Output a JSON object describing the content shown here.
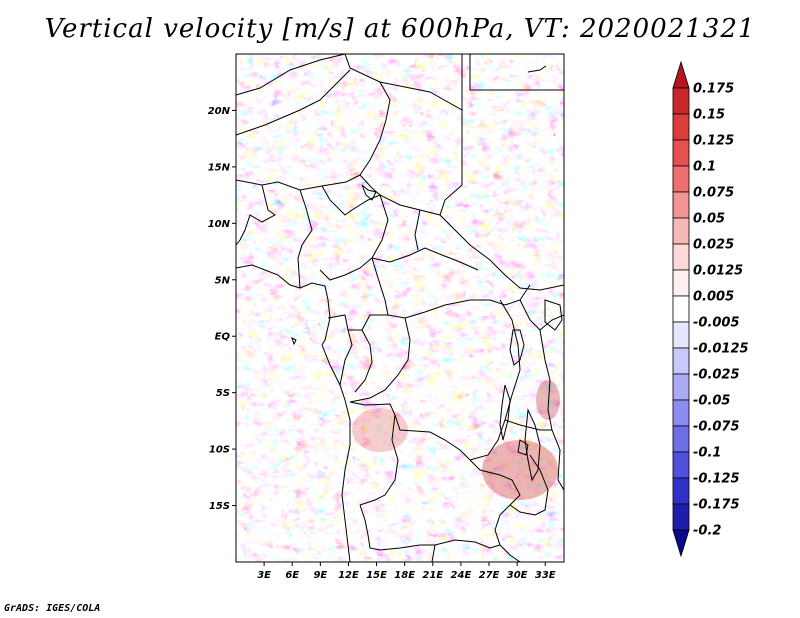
{
  "title": "Vertical velocity [m/s] at 600hPa, VT: 2020021321",
  "credit": "GrADS: IGES/COLA",
  "map": {
    "lon_range": [
      0,
      35
    ],
    "lat_range": [
      -20,
      25
    ],
    "lat_labels": [
      "20N",
      "15N",
      "10N",
      "5N",
      "EQ",
      "5S",
      "10S",
      "15S"
    ],
    "lat_values": [
      20,
      15,
      10,
      5,
      0,
      -5,
      -10,
      -15
    ],
    "lon_labels": [
      "3E",
      "6E",
      "9E",
      "12E",
      "15E",
      "18E",
      "21E",
      "24E",
      "27E",
      "30E",
      "33E"
    ],
    "lon_values": [
      3,
      6,
      9,
      12,
      15,
      18,
      21,
      24,
      27,
      30,
      33
    ]
  },
  "colorbar": {
    "levels": [
      "0.175",
      "0.15",
      "0.125",
      "0.1",
      "0.075",
      "0.05",
      "0.025",
      "0.0125",
      "0.005",
      "-0.005",
      "-0.0125",
      "-0.025",
      "-0.05",
      "-0.075",
      "-0.1",
      "-0.125",
      "-0.175",
      "-0.2"
    ],
    "colors": [
      "#b4141e",
      "#c82828",
      "#dc3c3c",
      "#e65050",
      "#ee7070",
      "#f49494",
      "#f9b8b8",
      "#fcd8d8",
      "#fff0f0",
      "#ffffff",
      "#e6e6ff",
      "#c8c8fa",
      "#aaaaf5",
      "#8c8cf0",
      "#6e6ee6",
      "#5050dc",
      "#3232c8",
      "#1e1eaa",
      "#0a0a8c"
    ]
  }
}
